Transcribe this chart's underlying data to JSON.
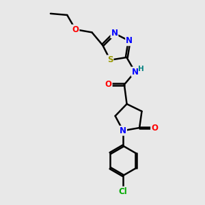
{
  "background_color": "#e8e8e8",
  "line_color": "#000000",
  "bond_width": 1.8,
  "atom_colors": {
    "N": "#0000FF",
    "O": "#FF0000",
    "S": "#999900",
    "Cl": "#00AA00",
    "H": "#008080",
    "C": "#000000"
  },
  "font_size": 8.5,
  "figsize": [
    3.0,
    3.0
  ],
  "dpi": 100
}
